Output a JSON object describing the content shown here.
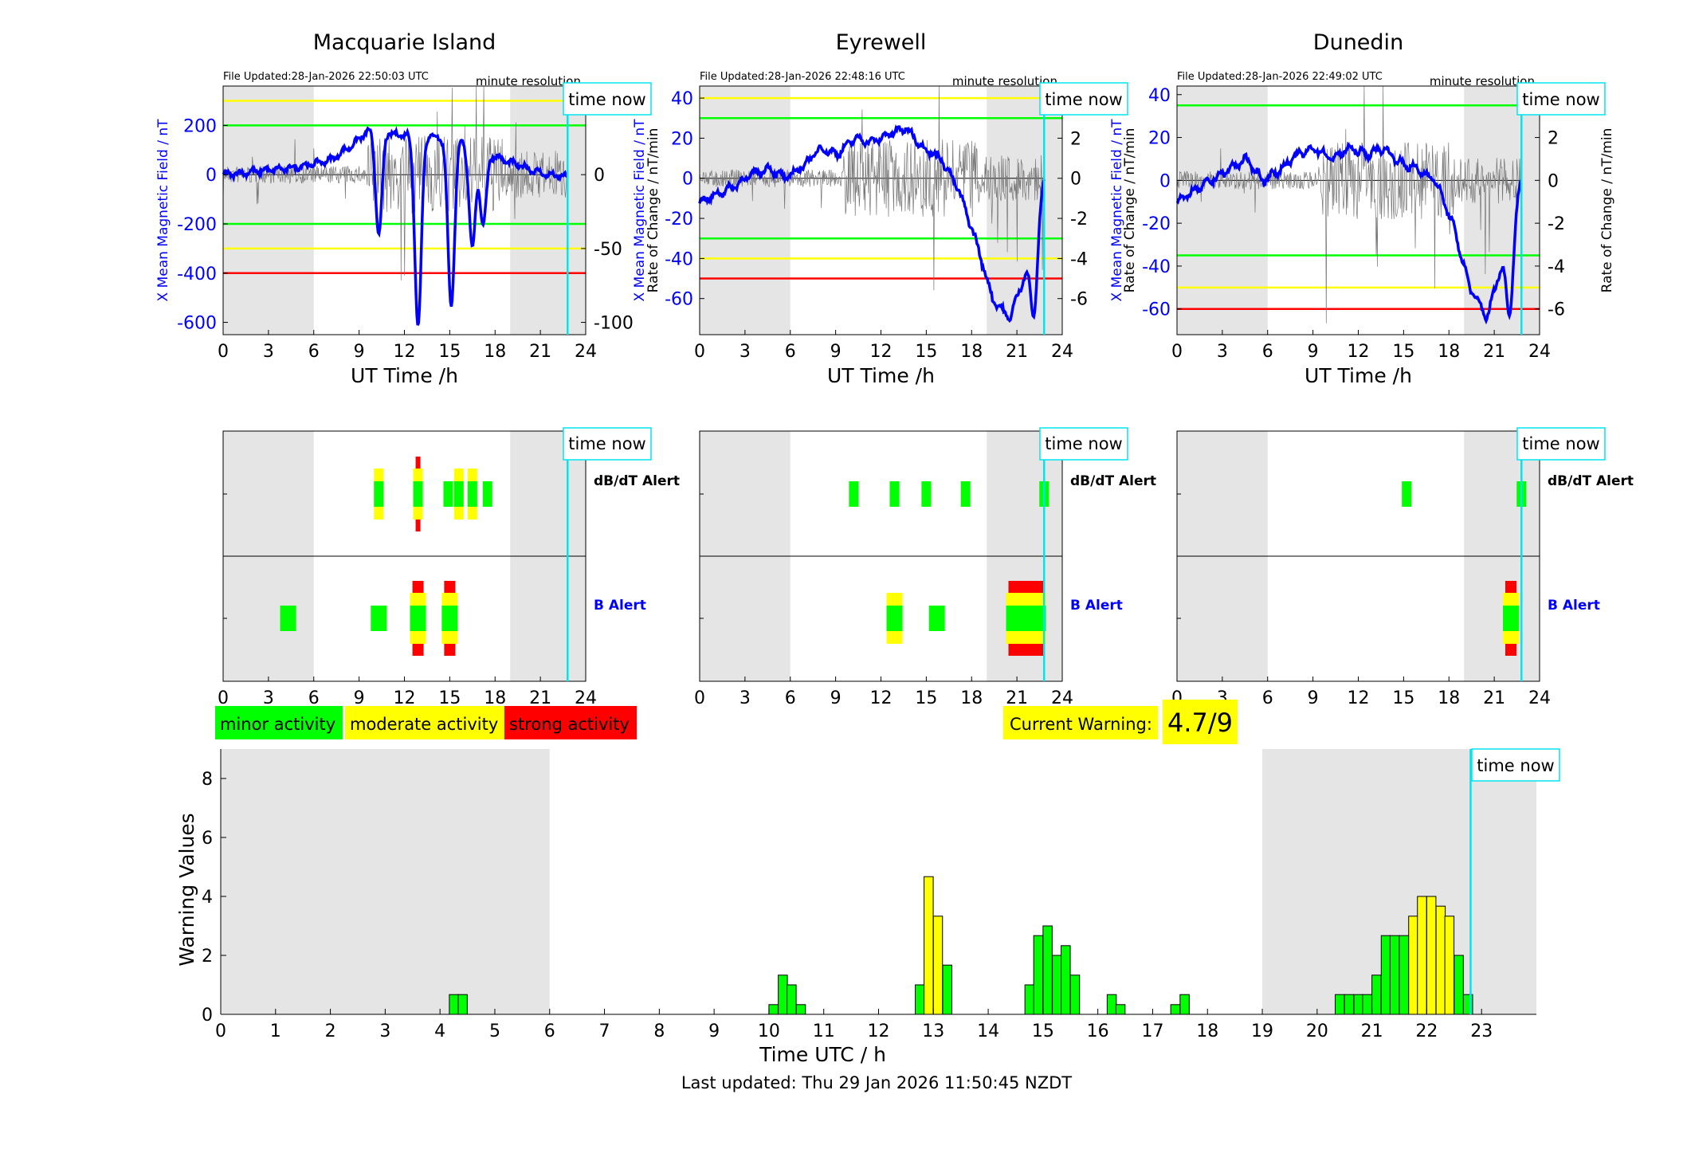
{
  "header": {
    "time_now_label": "time now",
    "minute_resolution_label": "minute resolution",
    "xlabel_top": "UT Time /h",
    "y_left_label": "X Mean Magnetic Field / nT",
    "y_right_label": "Rate of Change / nT/min"
  },
  "stations": [
    {
      "name": "Macquarie Island",
      "file_updated": "File Updated:28-Jan-2026 22:50:03 UTC",
      "ylim": [
        -650,
        360
      ],
      "ticks_left": [
        -600,
        -400,
        -200,
        0,
        200
      ],
      "ticks_right": [
        -100,
        -50,
        0,
        50
      ],
      "right_scale": 6,
      "levels": {
        "green": 200,
        "yellow": 300,
        "red": 400
      },
      "storms": [
        [
          10.3,
          -250
        ],
        [
          12.9,
          -630
        ],
        [
          15.1,
          -550
        ],
        [
          16.5,
          -300
        ],
        [
          17.2,
          -210
        ]
      ],
      "pattern": [
        0,
        8,
        18,
        25,
        40,
        60,
        120,
        200,
        160,
        170,
        150,
        140,
        100,
        60,
        30,
        0,
        -10
      ],
      "noise_amp": 40,
      "dbdt_alerts": [
        {
          "t": 10.3,
          "level": 2
        },
        {
          "t": 12.9,
          "level": 3
        },
        {
          "t": 14.9,
          "level": 1
        },
        {
          "t": 15.6,
          "level": 2
        },
        {
          "t": 16.5,
          "level": 2
        },
        {
          "t": 17.5,
          "level": 1
        }
      ],
      "b_alerts": [
        {
          "t": 4.3,
          "level": 1
        },
        {
          "t": 10.3,
          "level": 1
        },
        {
          "t": 12.9,
          "level": 3
        },
        {
          "t": 15.0,
          "level": 3
        }
      ]
    },
    {
      "name": "Eyrewell",
      "file_updated": "File Updated:28-Jan-2026 22:48:16 UTC",
      "ylim": [
        -78,
        46
      ],
      "ticks_left": [
        -60,
        -40,
        -20,
        0,
        20,
        40
      ],
      "ticks_right": [
        -6,
        -4,
        -2,
        0,
        2,
        4
      ],
      "right_scale": 10,
      "levels": {
        "green": 30,
        "yellow": 40,
        "red": 50
      },
      "storms": [
        [
          22.1,
          -70
        ]
      ],
      "pattern": [
        -12,
        -8,
        -4,
        2,
        5,
        0,
        6,
        15,
        12,
        20,
        18,
        22,
        25,
        15,
        10,
        -5,
        -30,
        -60,
        -70,
        -45,
        0
      ],
      "noise_amp": 6,
      "dbdt_alerts": [
        {
          "t": 10.2,
          "level": 1
        },
        {
          "t": 12.9,
          "level": 1
        },
        {
          "t": 15.0,
          "level": 1
        },
        {
          "t": 17.6,
          "level": 1
        },
        {
          "t": 22.8,
          "level": 1
        }
      ],
      "b_alerts": [
        {
          "t": 12.9,
          "level": 2
        },
        {
          "t": 15.7,
          "level": 1
        },
        {
          "t": 21.6,
          "level": 3
        }
      ]
    },
    {
      "name": "Dunedin",
      "file_updated": "File Updated:28-Jan-2026 22:49:02 UTC",
      "ylim": [
        -72,
        44
      ],
      "ticks_left": [
        -60,
        -40,
        -20,
        0,
        20,
        40
      ],
      "ticks_right": [
        -6,
        -4,
        -2,
        0,
        2,
        4
      ],
      "right_scale": 10,
      "levels": {
        "green": 35,
        "yellow": 50,
        "red": 60
      },
      "storms": [
        [
          22.0,
          -64
        ]
      ],
      "pattern": [
        -10,
        -5,
        0,
        5,
        10,
        0,
        5,
        12,
        15,
        10,
        15,
        12,
        15,
        8,
        5,
        0,
        -20,
        -50,
        -64,
        -35,
        0
      ],
      "noise_amp": 6,
      "dbdt_alerts": [
        {
          "t": 15.2,
          "level": 1
        },
        {
          "t": 22.8,
          "level": 1
        }
      ],
      "b_alerts": [
        {
          "t": 22.1,
          "level": 3
        }
      ]
    }
  ],
  "alerts": {
    "dbdt_label": "dB/dT Alert",
    "b_label": "B Alert"
  },
  "legend": {
    "minor": "minor activity",
    "moderate": "moderate activity",
    "strong": "strong activity"
  },
  "current_warning": {
    "label": "Current Warning:",
    "value": "4.7/9"
  },
  "chart_data": {
    "type": "bar",
    "xlabel": "Time UTC / h",
    "ylabel": "Warning Values",
    "xlim": [
      0,
      24
    ],
    "ylim": [
      0,
      9
    ],
    "x_ticks": [
      0,
      1,
      2,
      3,
      4,
      5,
      6,
      7,
      8,
      9,
      10,
      11,
      12,
      13,
      14,
      15,
      16,
      17,
      18,
      19,
      20,
      21,
      22,
      23
    ],
    "y_ticks": [
      0,
      2,
      4,
      6,
      8
    ],
    "bar_width_h": 0.1667,
    "shaded_intervals_h": [
      [
        0,
        6
      ],
      [
        19,
        24
      ]
    ],
    "time_now_h": 22.8,
    "bars": [
      {
        "t": 4.17,
        "v": 0.67,
        "c": "green"
      },
      {
        "t": 4.33,
        "v": 0.67,
        "c": "green"
      },
      {
        "t": 10.0,
        "v": 0.33,
        "c": "green"
      },
      {
        "t": 10.17,
        "v": 1.33,
        "c": "green"
      },
      {
        "t": 10.33,
        "v": 1.0,
        "c": "green"
      },
      {
        "t": 10.5,
        "v": 0.33,
        "c": "green"
      },
      {
        "t": 12.67,
        "v": 1.0,
        "c": "green"
      },
      {
        "t": 12.83,
        "v": 4.67,
        "c": "yellow"
      },
      {
        "t": 13.0,
        "v": 3.33,
        "c": "yellow"
      },
      {
        "t": 13.17,
        "v": 1.67,
        "c": "green"
      },
      {
        "t": 14.67,
        "v": 1.0,
        "c": "green"
      },
      {
        "t": 14.83,
        "v": 2.67,
        "c": "green"
      },
      {
        "t": 15.0,
        "v": 3.0,
        "c": "green"
      },
      {
        "t": 15.17,
        "v": 2.0,
        "c": "green"
      },
      {
        "t": 15.33,
        "v": 2.33,
        "c": "green"
      },
      {
        "t": 15.5,
        "v": 1.33,
        "c": "green"
      },
      {
        "t": 16.17,
        "v": 0.67,
        "c": "green"
      },
      {
        "t": 16.33,
        "v": 0.33,
        "c": "green"
      },
      {
        "t": 17.33,
        "v": 0.33,
        "c": "green"
      },
      {
        "t": 17.5,
        "v": 0.67,
        "c": "green"
      },
      {
        "t": 20.33,
        "v": 0.67,
        "c": "green"
      },
      {
        "t": 20.5,
        "v": 0.67,
        "c": "green"
      },
      {
        "t": 20.67,
        "v": 0.67,
        "c": "green"
      },
      {
        "t": 20.83,
        "v": 0.67,
        "c": "green"
      },
      {
        "t": 21.0,
        "v": 1.33,
        "c": "green"
      },
      {
        "t": 21.17,
        "v": 2.67,
        "c": "green"
      },
      {
        "t": 21.33,
        "v": 2.67,
        "c": "green"
      },
      {
        "t": 21.5,
        "v": 2.67,
        "c": "green"
      },
      {
        "t": 21.67,
        "v": 3.33,
        "c": "yellow"
      },
      {
        "t": 21.83,
        "v": 4.0,
        "c": "yellow"
      },
      {
        "t": 22.0,
        "v": 4.0,
        "c": "yellow"
      },
      {
        "t": 22.17,
        "v": 3.67,
        "c": "yellow"
      },
      {
        "t": 22.33,
        "v": 3.33,
        "c": "yellow"
      },
      {
        "t": 22.5,
        "v": 2.0,
        "c": "green"
      },
      {
        "t": 22.67,
        "v": 0.67,
        "c": "green"
      }
    ]
  },
  "footer": {
    "last_updated": "Last updated: Thu 29 Jan 2026 11:50:45 NZDT"
  },
  "colors": {
    "field_line": "#0000ff",
    "rate_line": "#777777",
    "green": "#00ff00",
    "yellow": "#ffff00",
    "red": "#ff0000",
    "cyan": "#00e5ee",
    "shade": "#e5e5e5"
  }
}
